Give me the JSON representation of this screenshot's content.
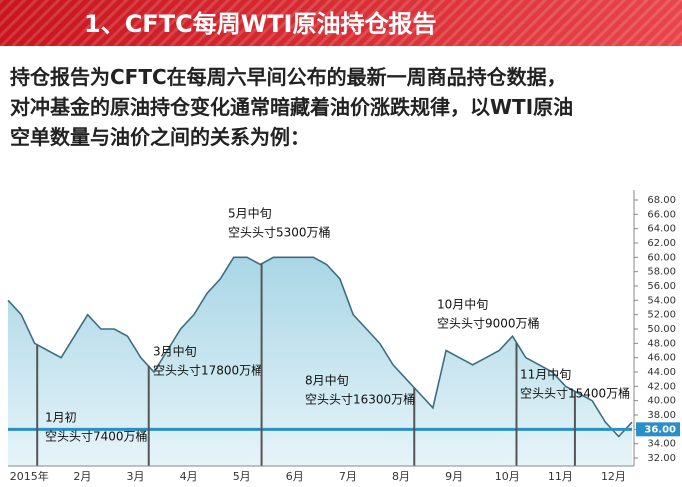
{
  "header": {
    "title": "1、CFTC每周WTI原油持仓报告"
  },
  "paragraph": [
    "持仓报告为CFTC在每周六早间公布的最新一周商品持仓数据，",
    "对冲基金的原油持仓变化通常暗藏着油价涨跌规律，以WTI原油",
    "空单数量与油价之间的关系为例："
  ],
  "chart_data": {
    "type": "line",
    "color": "#3d6e80",
    "categories": [
      null,
      "2015年",
      null,
      null,
      null,
      "2月",
      null,
      null,
      null,
      "3月",
      null,
      null,
      null,
      "4月",
      null,
      null,
      null,
      "5月",
      null,
      null,
      null,
      "6月",
      null,
      null,
      null,
      "7月",
      null,
      null,
      null,
      "8月",
      null,
      null,
      null,
      "9月",
      null,
      null,
      null,
      "10月",
      null,
      null,
      null,
      "11月",
      null,
      null,
      null,
      "12月",
      null,
      null
    ],
    "values": [
      54,
      52,
      48,
      47,
      46,
      49,
      52,
      50,
      50,
      49,
      46,
      44,
      47,
      50,
      52,
      55,
      57,
      60,
      60,
      59,
      60,
      60,
      60,
      60,
      59,
      57,
      52,
      50,
      48,
      45,
      43,
      41,
      39,
      47,
      46,
      45,
      46,
      47,
      49,
      46,
      45,
      44,
      42,
      41,
      40,
      37,
      35,
      37
    ],
    "ylim": [
      32,
      68
    ],
    "yticks": [
      {
        "value": 32,
        "label": "32.00"
      },
      {
        "value": 34,
        "label": "34.00"
      },
      {
        "value": 36,
        "label": "36.00"
      },
      {
        "value": 38,
        "label": "38.00"
      },
      {
        "value": 40,
        "label": "40.00"
      },
      {
        "value": 42,
        "label": "42.00"
      },
      {
        "value": 44,
        "label": "44.00"
      },
      {
        "value": 46,
        "label": "46.00"
      },
      {
        "value": 48,
        "label": "48.00"
      },
      {
        "value": 50,
        "label": "50.00"
      },
      {
        "value": 52,
        "label": "52.00"
      },
      {
        "value": 54,
        "label": "54.00"
      },
      {
        "value": 56,
        "label": "56.00"
      },
      {
        "value": 58,
        "label": "58.00"
      },
      {
        "value": 60,
        "label": "60.00"
      },
      {
        "value": 62,
        "label": "62.00"
      },
      {
        "value": 64,
        "label": "64.00"
      },
      {
        "value": 66,
        "label": "66.00"
      },
      {
        "value": 68,
        "label": "68.00"
      }
    ],
    "current": {
      "value": 36,
      "label": "36.00"
    },
    "annotations": [
      {
        "title": "1月初",
        "text": "空头头寸7400万桶"
      },
      {
        "title": "3月中旬",
        "text": "空头头寸17800万桶"
      },
      {
        "title": "5月中旬",
        "text": "空头头寸5300万桶"
      },
      {
        "title": "8月中旬",
        "text": "空头头寸16300万桶"
      },
      {
        "title": "10月中旬",
        "text": "空头头寸9000万桶"
      },
      {
        "title": "11月中旬",
        "text": "空头头寸15400万桶"
      }
    ]
  }
}
